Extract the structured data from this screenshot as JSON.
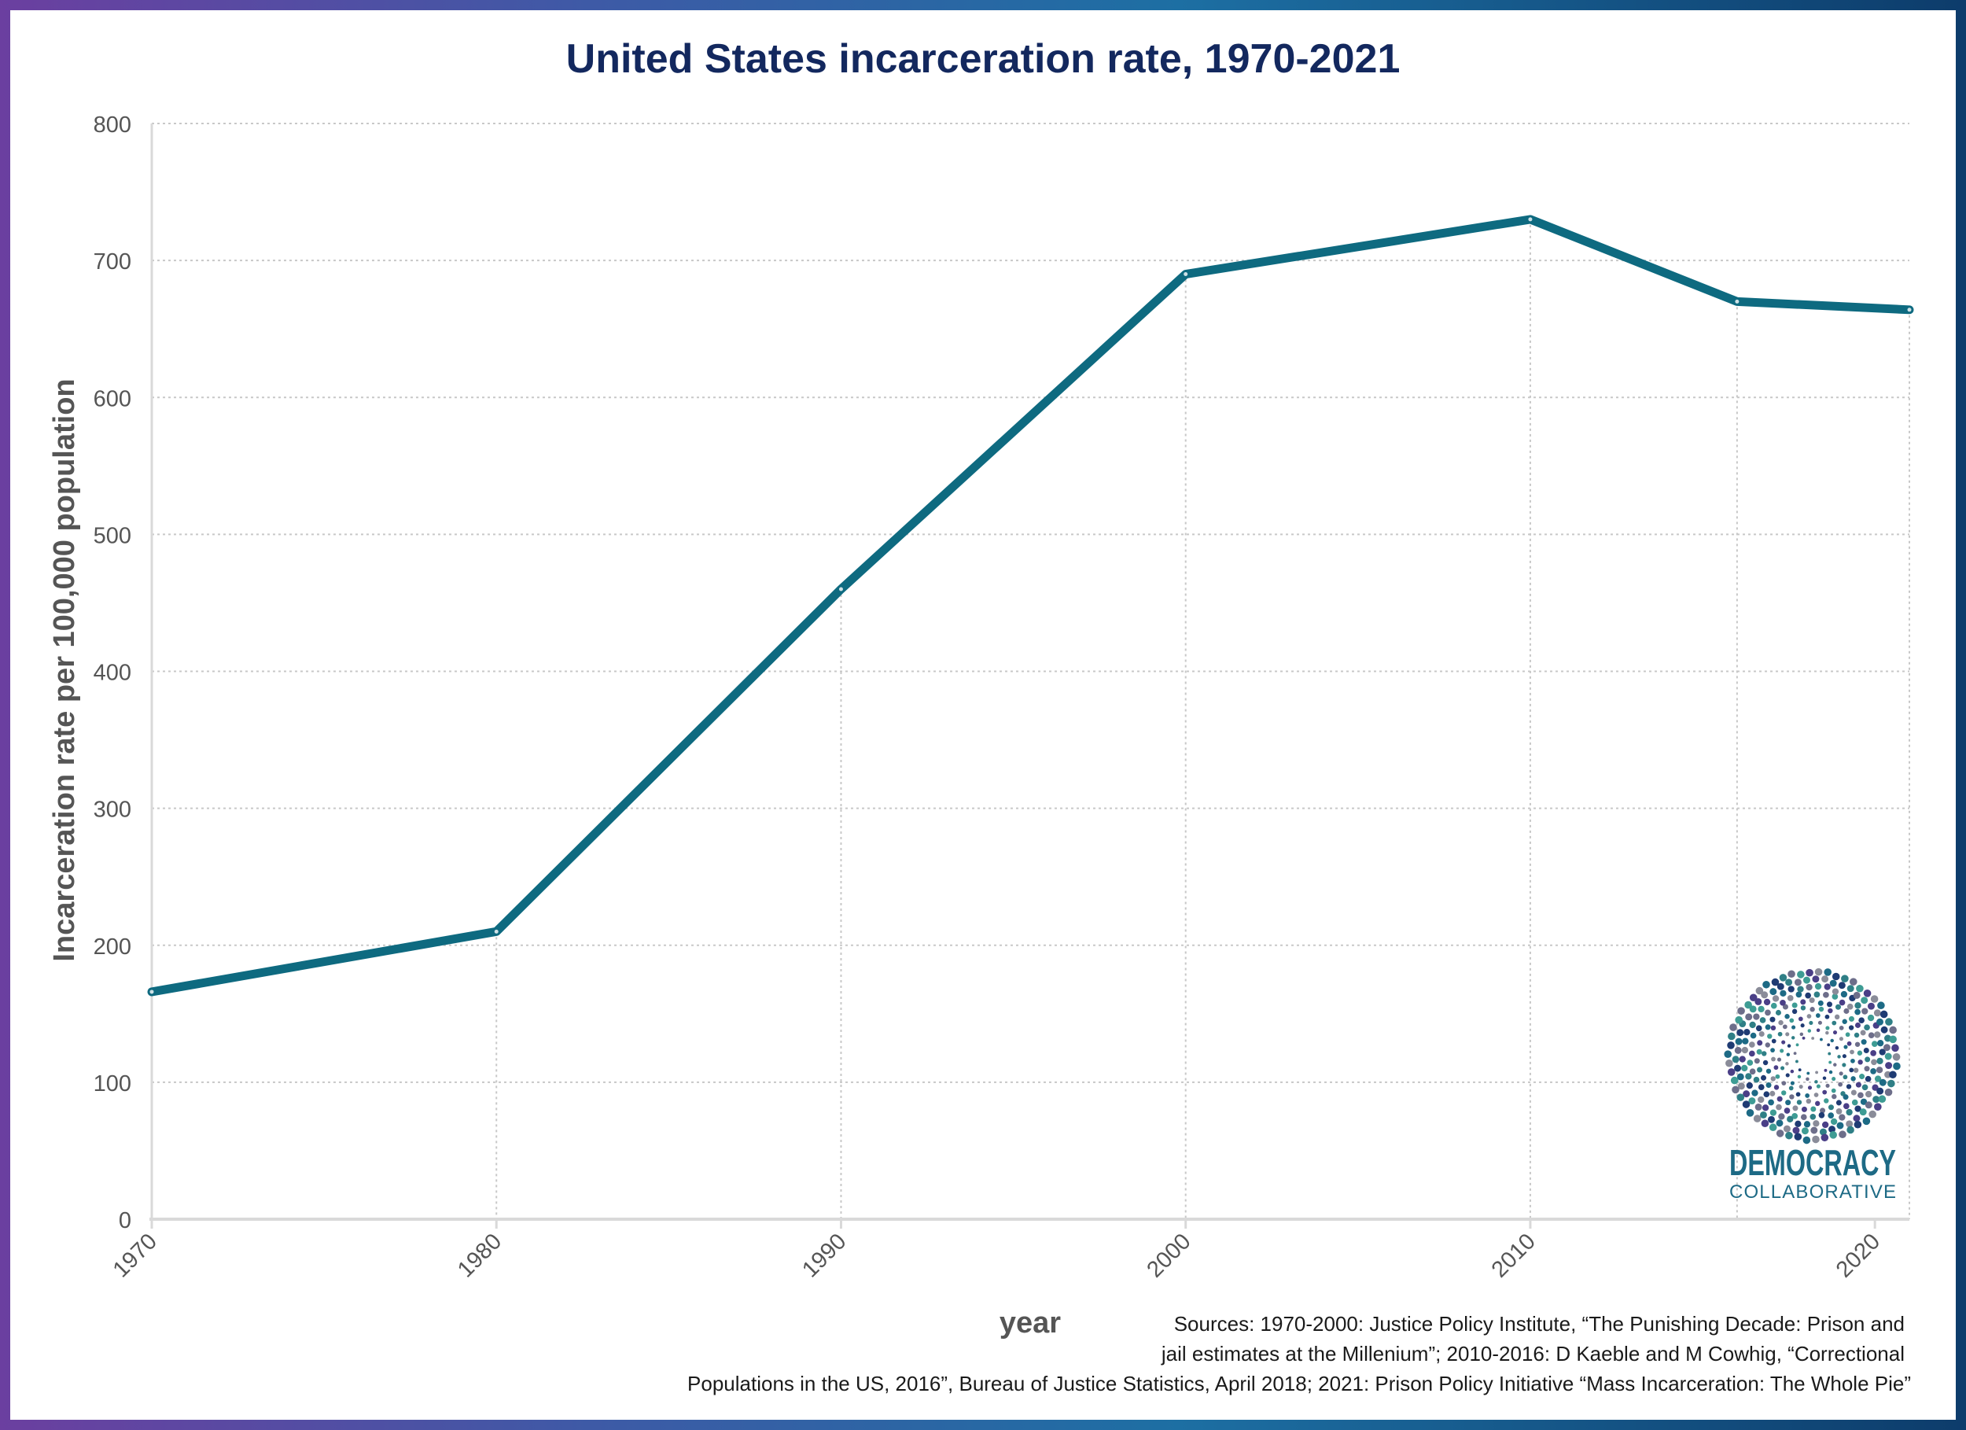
{
  "colors": {
    "title": "#13285e",
    "line": "#0e6a80",
    "grid": "#c8c8c8",
    "axis": "#d9d9d9",
    "tick_text": "#555555",
    "logo_text": "#1d6a85"
  },
  "chart_data": {
    "type": "line",
    "title": "United States incarceration rate, 1970-2021",
    "xlabel": "year",
    "ylabel": "Incarceration rate per 100,000 population",
    "xlim": [
      1970,
      2021
    ],
    "ylim": [
      0,
      800
    ],
    "x_ticks": [
      1970,
      1980,
      1990,
      2000,
      2010,
      2020
    ],
    "y_ticks": [
      0,
      100,
      200,
      300,
      400,
      500,
      600,
      700,
      800
    ],
    "grid": true,
    "legend": "none",
    "series": [
      {
        "x": [
          1970,
          1980,
          1990,
          2000,
          2010,
          2016,
          2021
        ],
        "y": [
          166,
          210,
          460,
          690,
          730,
          670,
          664
        ]
      }
    ]
  },
  "sources": {
    "line1": "Sources: 1970-2000: Justice Policy Institute, “The Punishing Decade: Prison and",
    "line2": "jail estimates at the Millenium”; 2010-2016: D Kaeble and M Cowhig, “Correctional",
    "line3": "Populations in the US, 2016”, Bureau of Justice Statistics, April 2018; 2021: Prison Policy Initiative “Mass Incarceration: The Whole Pie”"
  },
  "logo": {
    "line1": "DEMOCRACY",
    "line2": "COLLABORATIVE"
  }
}
